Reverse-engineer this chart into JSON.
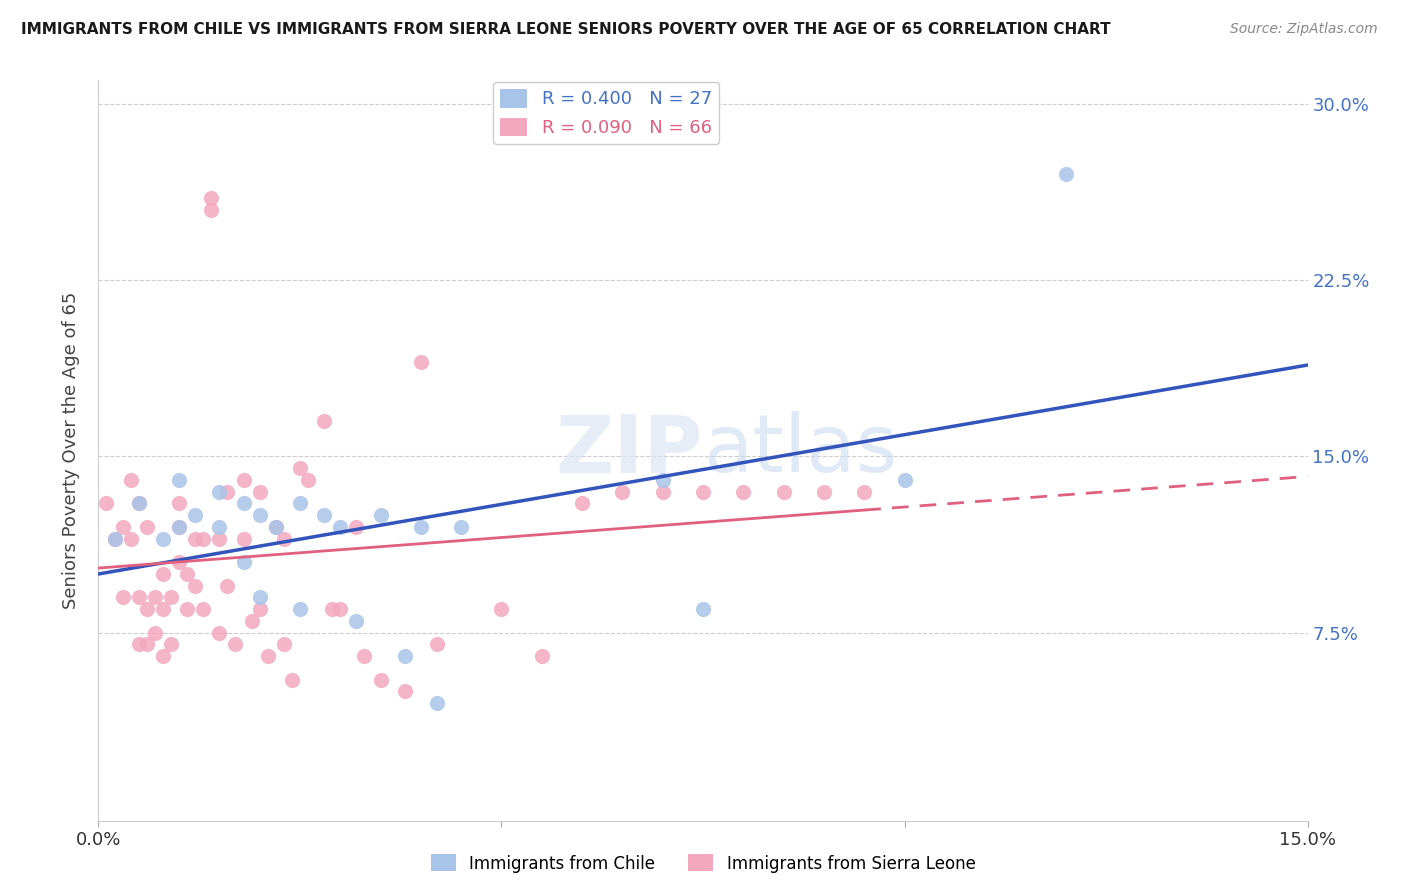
{
  "title": "IMMIGRANTS FROM CHILE VS IMMIGRANTS FROM SIERRA LEONE SENIORS POVERTY OVER THE AGE OF 65 CORRELATION CHART",
  "source": "Source: ZipAtlas.com",
  "ylabel": "Seniors Poverty Over the Age of 65",
  "xlim": [
    0.0,
    0.15
  ],
  "ylim": [
    -0.005,
    0.31
  ],
  "yticks": [
    0.075,
    0.15,
    0.225,
    0.3
  ],
  "ytick_labels": [
    "7.5%",
    "15.0%",
    "22.5%",
    "30.0%"
  ],
  "chile_color": "#a8c4e8",
  "sierra_color": "#f4a8c0",
  "chile_line_color": "#3355bb",
  "sierra_line_color": "#e06080",
  "chile_R": 0.4,
  "chile_N": 27,
  "sierra_R": 0.09,
  "sierra_N": 66,
  "chile_scatter_x": [
    0.002,
    0.005,
    0.008,
    0.01,
    0.01,
    0.012,
    0.015,
    0.015,
    0.018,
    0.018,
    0.02,
    0.02,
    0.022,
    0.025,
    0.025,
    0.028,
    0.03,
    0.032,
    0.035,
    0.038,
    0.04,
    0.042,
    0.045,
    0.07,
    0.075,
    0.1,
    0.12
  ],
  "chile_scatter_y": [
    0.115,
    0.13,
    0.115,
    0.14,
    0.12,
    0.125,
    0.135,
    0.12,
    0.13,
    0.105,
    0.125,
    0.09,
    0.12,
    0.13,
    0.085,
    0.125,
    0.12,
    0.08,
    0.125,
    0.065,
    0.12,
    0.045,
    0.12,
    0.14,
    0.085,
    0.14,
    0.27
  ],
  "sierra_scatter_x": [
    0.001,
    0.002,
    0.003,
    0.003,
    0.004,
    0.004,
    0.005,
    0.005,
    0.005,
    0.006,
    0.006,
    0.006,
    0.007,
    0.007,
    0.008,
    0.008,
    0.008,
    0.009,
    0.009,
    0.01,
    0.01,
    0.01,
    0.011,
    0.011,
    0.012,
    0.012,
    0.013,
    0.013,
    0.014,
    0.014,
    0.015,
    0.015,
    0.016,
    0.016,
    0.017,
    0.018,
    0.018,
    0.019,
    0.02,
    0.02,
    0.021,
    0.022,
    0.023,
    0.023,
    0.024,
    0.025,
    0.026,
    0.028,
    0.029,
    0.03,
    0.032,
    0.033,
    0.035,
    0.038,
    0.04,
    0.042,
    0.05,
    0.055,
    0.06,
    0.065,
    0.07,
    0.075,
    0.08,
    0.085,
    0.09,
    0.095
  ],
  "sierra_scatter_y": [
    0.13,
    0.115,
    0.12,
    0.09,
    0.14,
    0.115,
    0.13,
    0.09,
    0.07,
    0.12,
    0.085,
    0.07,
    0.09,
    0.075,
    0.1,
    0.085,
    0.065,
    0.09,
    0.07,
    0.13,
    0.12,
    0.105,
    0.1,
    0.085,
    0.115,
    0.095,
    0.115,
    0.085,
    0.26,
    0.255,
    0.115,
    0.075,
    0.135,
    0.095,
    0.07,
    0.14,
    0.115,
    0.08,
    0.135,
    0.085,
    0.065,
    0.12,
    0.115,
    0.07,
    0.055,
    0.145,
    0.14,
    0.165,
    0.085,
    0.085,
    0.12,
    0.065,
    0.055,
    0.05,
    0.19,
    0.07,
    0.085,
    0.065,
    0.13,
    0.135,
    0.135,
    0.135,
    0.135,
    0.135,
    0.135,
    0.135
  ],
  "watermark_text": "ZIPatlas",
  "background_color": "#ffffff",
  "grid_color": "#cccccc"
}
